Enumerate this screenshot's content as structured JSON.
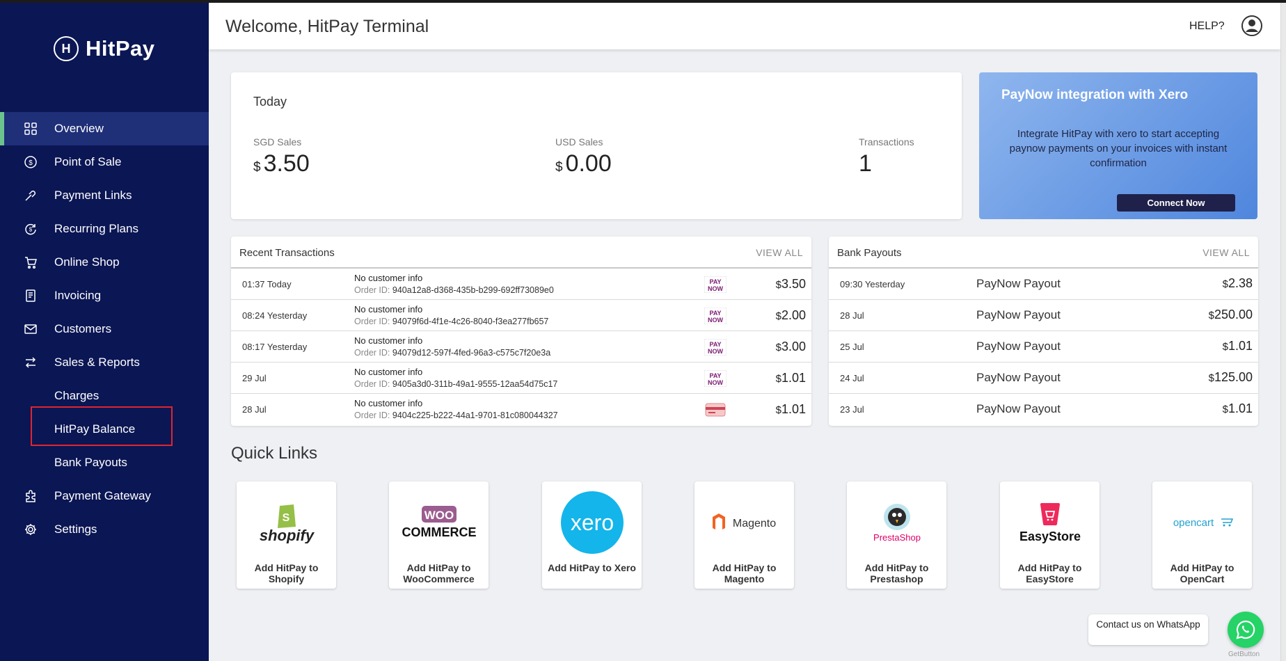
{
  "brand": {
    "name": "HitPay",
    "mark": "H"
  },
  "sidebar": {
    "items": [
      {
        "label": "Overview",
        "icon": "grid-icon"
      },
      {
        "label": "Point of Sale",
        "icon": "dollar-circle-icon"
      },
      {
        "label": "Payment Links",
        "icon": "link-icon"
      },
      {
        "label": "Recurring Plans",
        "icon": "recurring-icon"
      },
      {
        "label": "Online Shop",
        "icon": "cart-icon"
      },
      {
        "label": "Invoicing",
        "icon": "invoice-icon"
      },
      {
        "label": "Customers",
        "icon": "envelope-icon"
      },
      {
        "label": "Sales & Reports",
        "icon": "arrows-exchange-icon"
      },
      {
        "label": "Charges"
      },
      {
        "label": "HitPay Balance"
      },
      {
        "label": "Bank Payouts"
      },
      {
        "label": "Payment Gateway",
        "icon": "puzzle-icon"
      },
      {
        "label": "Settings",
        "icon": "gear-icon"
      }
    ]
  },
  "header": {
    "welcome": "Welcome, HitPay Terminal",
    "help": "HELP?"
  },
  "today": {
    "title": "Today",
    "sgd_label": "SGD Sales",
    "sgd_currency": "$",
    "sgd_value": "3.50",
    "usd_label": "USD Sales",
    "usd_currency": "$",
    "usd_value": "0.00",
    "tx_label": "Transactions",
    "tx_value": "1"
  },
  "promo": {
    "title": "PayNow integration with Xero",
    "text": "Integrate HitPay with xero to start accepting paynow payments on your invoices with instant confirmation",
    "button": "Connect Now"
  },
  "transactions": {
    "title": "Recent Transactions",
    "view_all": "VIEW ALL",
    "order_label": "Order ID:",
    "rows": [
      {
        "time": "01:37 Today",
        "customer": "No customer info",
        "order_id": "940a12a8-d368-435b-b299-692ff73089e0",
        "method": "paynow",
        "currency": "$",
        "amount": "3.50"
      },
      {
        "time": "08:24 Yesterday",
        "customer": "No customer info",
        "order_id": "94079f6d-4f1e-4c26-8040-f3ea277fb657",
        "method": "paynow",
        "currency": "$",
        "amount": "2.00"
      },
      {
        "time": "08:17 Yesterday",
        "customer": "No customer info",
        "order_id": "94079d12-597f-4fed-96a3-c575c7f20e3a",
        "method": "paynow",
        "currency": "$",
        "amount": "3.00"
      },
      {
        "time": "29 Jul",
        "customer": "No customer info",
        "order_id": "9405a3d0-311b-49a1-9555-12aa54d75c17",
        "method": "paynow",
        "currency": "$",
        "amount": "1.01"
      },
      {
        "time": "28 Jul",
        "customer": "No customer info",
        "order_id": "9404c225-b222-44a1-9701-81c080044327",
        "method": "card",
        "currency": "$",
        "amount": "1.01"
      }
    ]
  },
  "payouts": {
    "title": "Bank Payouts",
    "view_all": "VIEW ALL",
    "rows": [
      {
        "time": "09:30 Yesterday",
        "label": "PayNow Payout",
        "currency": "$",
        "amount": "2.38"
      },
      {
        "time": "28 Jul",
        "label": "PayNow Payout",
        "currency": "$",
        "amount": "250.00"
      },
      {
        "time": "25 Jul",
        "label": "PayNow Payout",
        "currency": "$",
        "amount": "1.01"
      },
      {
        "time": "24 Jul",
        "label": "PayNow Payout",
        "currency": "$",
        "amount": "125.00"
      },
      {
        "time": "23 Jul",
        "label": "PayNow Payout",
        "currency": "$",
        "amount": "1.01"
      }
    ]
  },
  "quick_links": {
    "title": "Quick Links",
    "items": [
      {
        "label": "Add HitPay to Shopify",
        "logo_text": "shopify"
      },
      {
        "label": "Add HitPay to WooCommerce",
        "logo_text": "WOO COMMERCE"
      },
      {
        "label": "Add HitPay to Xero",
        "logo_text": "xero"
      },
      {
        "label": "Add HitPay to Magento",
        "logo_text": "Magento"
      },
      {
        "label": "Add HitPay to Prestashop",
        "logo_text": "PrestaShop"
      },
      {
        "label": "Add HitPay to EasyStore",
        "logo_text": "EasyStore"
      },
      {
        "label": "Add HitPay to OpenCart",
        "logo_text": "opencart"
      }
    ]
  },
  "whatsapp": {
    "text": "Contact us on WhatsApp",
    "powered": "GetButton"
  },
  "colors": {
    "sidebar": "#0b1654",
    "active": "#1f2f78",
    "accent": "#6dc38d",
    "highlight": "#e0252e",
    "paynow": "#7b1a73",
    "whatsapp": "#25d366"
  }
}
